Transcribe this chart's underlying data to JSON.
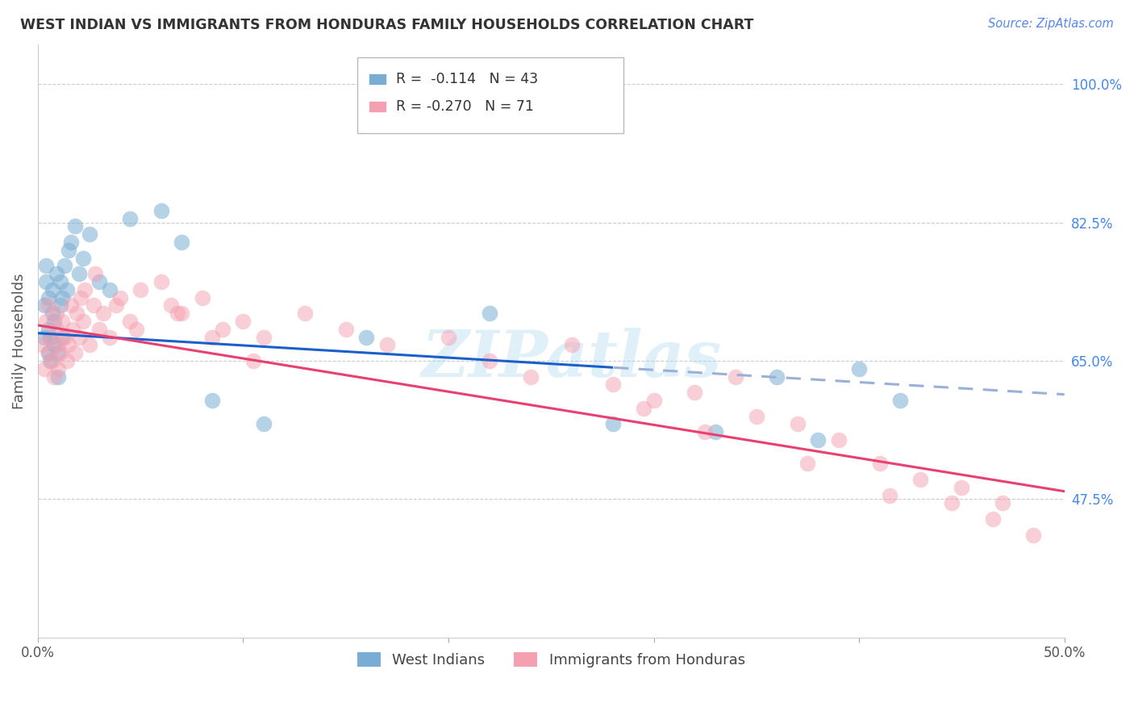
{
  "title": "WEST INDIAN VS IMMIGRANTS FROM HONDURAS FAMILY HOUSEHOLDS CORRELATION CHART",
  "source": "Source: ZipAtlas.com",
  "ylabel": "Family Households",
  "right_yticks": [
    100.0,
    82.5,
    65.0,
    47.5
  ],
  "xmin": 0.0,
  "xmax": 50.0,
  "ymin": 30.0,
  "ymax": 105.0,
  "blue_color": "#7aadd4",
  "pink_color": "#f4a0b0",
  "reg_blue_solid_color": "#1a5fcc",
  "reg_blue_dash_color": "#9ab0d8",
  "reg_pink_color": "#e84070",
  "watermark": "ZIPatlas",
  "blue_solid_end_x": 28.0,
  "blue_reg_intercept": 68.5,
  "blue_reg_slope": -0.155,
  "pink_reg_intercept": 69.5,
  "pink_reg_slope": -0.42,
  "blue_x": [
    0.3,
    0.3,
    0.4,
    0.4,
    0.5,
    0.5,
    0.5,
    0.6,
    0.6,
    0.7,
    0.7,
    0.8,
    0.8,
    0.9,
    1.0,
    1.0,
    1.1,
    1.1,
    1.2,
    1.2,
    1.3,
    1.4,
    1.5,
    1.6,
    1.8,
    2.0,
    2.2,
    2.5,
    3.0,
    3.5,
    4.5,
    6.0,
    7.0,
    8.5,
    11.0,
    16.0,
    22.0,
    28.0,
    33.0,
    36.0,
    38.0,
    40.0,
    42.0
  ],
  "blue_y": [
    68,
    72,
    75,
    77,
    66,
    69,
    73,
    65,
    68,
    71,
    74,
    67,
    70,
    76,
    63,
    66,
    72,
    75,
    68,
    73,
    77,
    74,
    79,
    80,
    82,
    76,
    78,
    81,
    75,
    74,
    83,
    84,
    80,
    60,
    57,
    68,
    71,
    57,
    56,
    63,
    55,
    64,
    60
  ],
  "pink_x": [
    0.2,
    0.3,
    0.4,
    0.5,
    0.5,
    0.6,
    0.7,
    0.8,
    0.9,
    0.9,
    1.0,
    1.0,
    1.1,
    1.2,
    1.3,
    1.4,
    1.5,
    1.6,
    1.7,
    1.8,
    1.9,
    2.0,
    2.1,
    2.2,
    2.3,
    2.5,
    2.7,
    3.0,
    3.2,
    3.5,
    4.0,
    4.5,
    5.0,
    6.0,
    6.5,
    7.0,
    8.0,
    9.0,
    10.0,
    11.0,
    13.0,
    15.0,
    17.0,
    20.0,
    22.0,
    24.0,
    26.0,
    28.0,
    30.0,
    32.0,
    34.0,
    35.0,
    37.0,
    39.0,
    41.0,
    43.0,
    45.0,
    47.0,
    29.5,
    32.5,
    37.5,
    41.5,
    44.5,
    46.5,
    48.5,
    2.8,
    3.8,
    4.8,
    6.8,
    8.5,
    10.5
  ],
  "pink_y": [
    67,
    64,
    70,
    66,
    72,
    68,
    65,
    63,
    69,
    71,
    64,
    67,
    66,
    70,
    68,
    65,
    67,
    72,
    69,
    66,
    71,
    68,
    73,
    70,
    74,
    67,
    72,
    69,
    71,
    68,
    73,
    70,
    74,
    75,
    72,
    71,
    73,
    69,
    70,
    68,
    71,
    69,
    67,
    68,
    65,
    63,
    67,
    62,
    60,
    61,
    63,
    58,
    57,
    55,
    52,
    50,
    49,
    47,
    59,
    56,
    52,
    48,
    47,
    45,
    43,
    76,
    72,
    69,
    71,
    68,
    65
  ]
}
